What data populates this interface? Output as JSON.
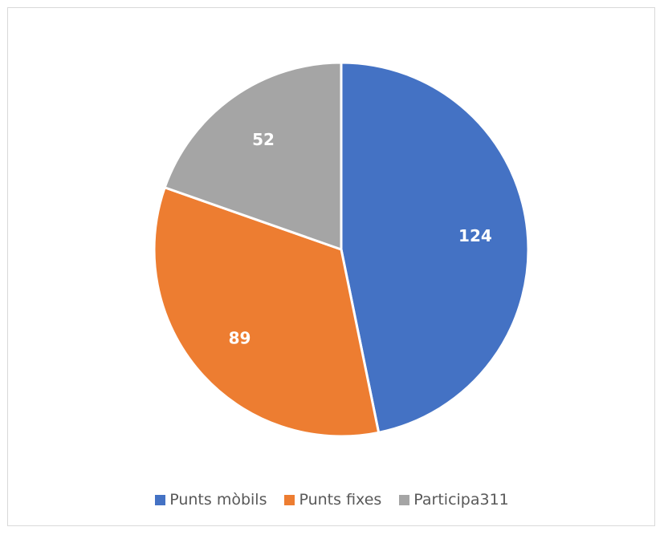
{
  "chart_data": {
    "type": "pie",
    "categories": [
      "Punts mòbils",
      "Punts fixes",
      "Participa311"
    ],
    "values": [
      124,
      89,
      52
    ],
    "colors": [
      "#4472c4",
      "#ed7d31",
      "#a5a5a5"
    ],
    "data_labels": [
      "124",
      "89",
      "52"
    ],
    "start_angle_deg": 0,
    "direction": "clockwise",
    "legend_position": "bottom"
  },
  "legend": {
    "items": [
      {
        "label": "Punts mòbils",
        "color": "#4472c4"
      },
      {
        "label": "Punts fixes",
        "color": "#ed7d31"
      },
      {
        "label": "Participa311",
        "color": "#a5a5a5"
      }
    ]
  }
}
